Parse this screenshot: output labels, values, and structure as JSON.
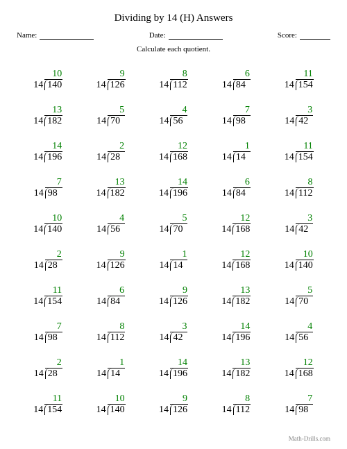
{
  "title": "Dividing by 14 (H) Answers",
  "meta": {
    "name_label": "Name:",
    "date_label": "Date:",
    "score_label": "Score:"
  },
  "instruction": "Calculate each quotient.",
  "footer": "Math-Drills.com",
  "divisor": 14,
  "quotient_color": "#008000",
  "problems": [
    [
      {
        "q": 10,
        "d": 140
      },
      {
        "q": 9,
        "d": 126
      },
      {
        "q": 8,
        "d": 112
      },
      {
        "q": 6,
        "d": 84
      },
      {
        "q": 11,
        "d": 154
      }
    ],
    [
      {
        "q": 13,
        "d": 182
      },
      {
        "q": 5,
        "d": 70
      },
      {
        "q": 4,
        "d": 56
      },
      {
        "q": 7,
        "d": 98
      },
      {
        "q": 3,
        "d": 42
      }
    ],
    [
      {
        "q": 14,
        "d": 196
      },
      {
        "q": 2,
        "d": 28
      },
      {
        "q": 12,
        "d": 168
      },
      {
        "q": 1,
        "d": 14
      },
      {
        "q": 11,
        "d": 154
      }
    ],
    [
      {
        "q": 7,
        "d": 98
      },
      {
        "q": 13,
        "d": 182
      },
      {
        "q": 14,
        "d": 196
      },
      {
        "q": 6,
        "d": 84
      },
      {
        "q": 8,
        "d": 112
      }
    ],
    [
      {
        "q": 10,
        "d": 140
      },
      {
        "q": 4,
        "d": 56
      },
      {
        "q": 5,
        "d": 70
      },
      {
        "q": 12,
        "d": 168
      },
      {
        "q": 3,
        "d": 42
      }
    ],
    [
      {
        "q": 2,
        "d": 28
      },
      {
        "q": 9,
        "d": 126
      },
      {
        "q": 1,
        "d": 14
      },
      {
        "q": 12,
        "d": 168
      },
      {
        "q": 10,
        "d": 140
      }
    ],
    [
      {
        "q": 11,
        "d": 154
      },
      {
        "q": 6,
        "d": 84
      },
      {
        "q": 9,
        "d": 126
      },
      {
        "q": 13,
        "d": 182
      },
      {
        "q": 5,
        "d": 70
      }
    ],
    [
      {
        "q": 7,
        "d": 98
      },
      {
        "q": 8,
        "d": 112
      },
      {
        "q": 3,
        "d": 42
      },
      {
        "q": 14,
        "d": 196
      },
      {
        "q": 4,
        "d": 56
      }
    ],
    [
      {
        "q": 2,
        "d": 28
      },
      {
        "q": 1,
        "d": 14
      },
      {
        "q": 14,
        "d": 196
      },
      {
        "q": 13,
        "d": 182
      },
      {
        "q": 12,
        "d": 168
      }
    ],
    [
      {
        "q": 11,
        "d": 154
      },
      {
        "q": 10,
        "d": 140
      },
      {
        "q": 9,
        "d": 126
      },
      {
        "q": 8,
        "d": 112
      },
      {
        "q": 7,
        "d": 98
      }
    ]
  ]
}
